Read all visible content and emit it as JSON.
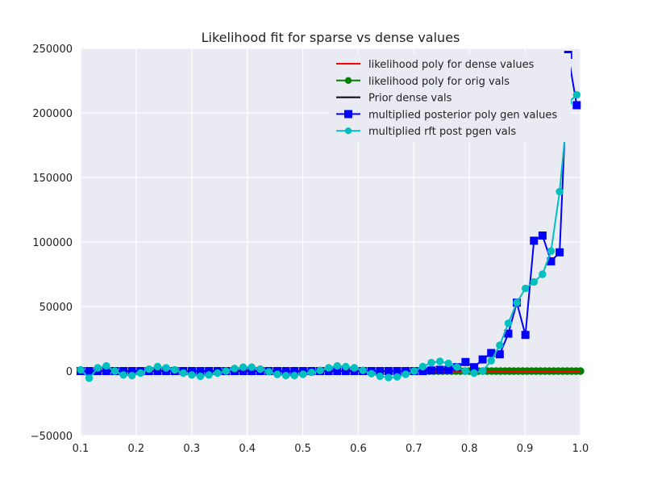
{
  "chart_data": {
    "type": "line",
    "title": "Likelihood fit for sparse vs dense values",
    "xlabel": "",
    "ylabel": "",
    "xlim": [
      0.1,
      1.0
    ],
    "ylim": [
      -50000,
      250000
    ],
    "xticks": [
      0.1,
      0.2,
      0.3,
      0.4,
      0.5,
      0.6,
      0.7,
      0.8,
      0.9,
      1.0
    ],
    "xtick_labels": [
      "0.1",
      "0.2",
      "0.3",
      "0.4",
      "0.5",
      "0.6",
      "0.7",
      "0.8",
      "0.9",
      "1.0"
    ],
    "yticks": [
      -50000,
      0,
      50000,
      100000,
      150000,
      200000,
      250000
    ],
    "ytick_labels": [
      "−50000",
      "0",
      "50000",
      "100000",
      "150000",
      "200000",
      "250000"
    ],
    "grid": true,
    "legend_position": "top-right",
    "series": [
      {
        "name": "likelihood poly for dense values",
        "color": "#ff0000",
        "marker": "none",
        "x": [
          0.72,
          0.76,
          0.8,
          0.84,
          0.88,
          0.92,
          0.96,
          1.0
        ],
        "y": [
          0,
          0,
          0,
          0,
          0,
          0,
          0,
          0
        ]
      },
      {
        "name": "likelihood poly for orig vals",
        "color": "#008000",
        "marker": "circle",
        "x": [
          0.72,
          0.728,
          0.736,
          0.744,
          0.752,
          0.76,
          0.768,
          0.776,
          0.784,
          0.792,
          0.8,
          0.808,
          0.816,
          0.824,
          0.832,
          0.84,
          0.848,
          0.856,
          0.864,
          0.872,
          0.88,
          0.888,
          0.896,
          0.904,
          0.912,
          0.92,
          0.928,
          0.936,
          0.944,
          0.952,
          0.96,
          0.968,
          0.976,
          0.984,
          0.992,
          1.0
        ],
        "y": [
          0,
          0,
          0,
          0,
          0,
          0,
          0,
          0,
          0,
          0,
          0,
          0,
          0,
          0,
          0,
          0,
          0,
          0,
          0,
          0,
          0,
          0,
          0,
          0,
          0,
          0,
          0,
          0,
          0,
          0,
          0,
          0,
          0,
          0,
          0,
          0
        ]
      },
      {
        "name": "Prior dense vals",
        "color": "#000000",
        "marker": "none",
        "x": [
          0.72,
          0.8,
          0.9,
          1.0
        ],
        "y": [
          0,
          0,
          0,
          0
        ]
      },
      {
        "name": "multiplied posterior poly gen values",
        "color": "#0000ff",
        "marker": "square",
        "x": [
          0.1,
          0.1154,
          0.1308,
          0.1462,
          0.1616,
          0.177,
          0.1924,
          0.2078,
          0.2232,
          0.2386,
          0.254,
          0.2694,
          0.2848,
          0.3002,
          0.3156,
          0.331,
          0.3464,
          0.3618,
          0.3772,
          0.3926,
          0.408,
          0.4234,
          0.4388,
          0.4542,
          0.4696,
          0.485,
          0.5004,
          0.5158,
          0.5312,
          0.5466,
          0.562,
          0.5774,
          0.5928,
          0.6082,
          0.6236,
          0.639,
          0.6544,
          0.6698,
          0.6852,
          0.7006,
          0.716,
          0.7314,
          0.7468,
          0.7622,
          0.7776,
          0.793,
          0.8084,
          0.8238,
          0.8392,
          0.8546,
          0.87,
          0.8854,
          0.9008,
          0.9162,
          0.9316,
          0.947,
          0.9624,
          0.9778,
          0.9932
        ],
        "y": [
          0,
          0,
          0,
          0,
          0,
          0,
          0,
          0,
          0,
          0,
          0,
          0,
          0,
          0,
          0,
          0,
          0,
          0,
          0,
          0,
          0,
          0,
          0,
          0,
          0,
          0,
          0,
          0,
          0,
          0,
          0,
          0,
          0,
          0,
          0,
          0,
          0,
          0,
          0,
          0,
          0,
          500,
          1000,
          1000,
          3000,
          7000,
          3000,
          9000,
          14000,
          13000,
          29000,
          53000,
          28000,
          101000,
          105000,
          85000,
          92000,
          245000,
          206000
        ]
      },
      {
        "name": "multiplied rft post pgen vals",
        "color": "#00bfbf",
        "marker": "circle",
        "x": [
          0.1,
          0.1154,
          0.1308,
          0.1462,
          0.1616,
          0.177,
          0.1924,
          0.2078,
          0.2232,
          0.2386,
          0.254,
          0.2694,
          0.2848,
          0.3002,
          0.3156,
          0.331,
          0.3464,
          0.3618,
          0.3772,
          0.3926,
          0.408,
          0.4234,
          0.4388,
          0.4542,
          0.4696,
          0.485,
          0.5004,
          0.5158,
          0.5312,
          0.5466,
          0.562,
          0.5774,
          0.5928,
          0.6082,
          0.6236,
          0.639,
          0.6544,
          0.6698,
          0.6852,
          0.7006,
          0.716,
          0.7314,
          0.7468,
          0.7622,
          0.7776,
          0.793,
          0.8084,
          0.8238,
          0.8392,
          0.8546,
          0.87,
          0.8854,
          0.9008,
          0.9162,
          0.9316,
          0.947,
          0.9624,
          0.9778,
          0.9932
        ],
        "y": [
          1000,
          -5500,
          2500,
          4000,
          0,
          -3000,
          -3500,
          -1500,
          1500,
          3500,
          2500,
          1000,
          -1500,
          -3000,
          -4000,
          -3000,
          -1500,
          0,
          2000,
          3000,
          3000,
          1500,
          -500,
          -2500,
          -3500,
          -3500,
          -2500,
          -1000,
          500,
          2500,
          4000,
          3500,
          2500,
          500,
          -2000,
          -4000,
          -5000,
          -4500,
          -2500,
          0,
          3500,
          6500,
          7500,
          6000,
          3000,
          0,
          -1500,
          0,
          8000,
          20000,
          37000,
          53000,
          64000,
          69000,
          75000,
          93000,
          139000,
          208000,
          214000
        ]
      }
    ]
  }
}
